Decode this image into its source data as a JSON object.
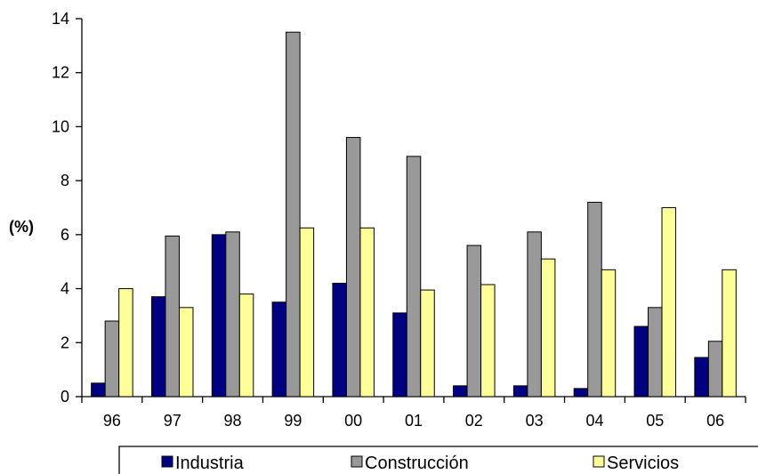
{
  "chart_data": {
    "type": "bar",
    "ylabel": "(%)",
    "xlabel": "",
    "ylim": [
      0,
      14
    ],
    "yticks": [
      0,
      2,
      4,
      6,
      8,
      10,
      12,
      14
    ],
    "categories": [
      "96",
      "97",
      "98",
      "99",
      "00",
      "01",
      "02",
      "03",
      "04",
      "05",
      "06"
    ],
    "series": [
      {
        "name": "Industria",
        "color": "#000080",
        "values": [
          0.5,
          3.7,
          6.0,
          3.5,
          4.2,
          3.1,
          0.4,
          0.4,
          0.3,
          2.6,
          1.45
        ]
      },
      {
        "name": "Construcción",
        "color": "#999999",
        "values": [
          2.8,
          5.95,
          6.1,
          13.5,
          9.6,
          8.9,
          5.6,
          6.1,
          7.2,
          3.3,
          2.05
        ]
      },
      {
        "name": "Servicios",
        "color": "#FFFF99",
        "values": [
          4.0,
          3.3,
          3.8,
          6.25,
          6.25,
          3.95,
          4.15,
          5.1,
          4.7,
          7.0,
          4.7
        ]
      }
    ],
    "legend_position": "bottom",
    "grid": false
  }
}
